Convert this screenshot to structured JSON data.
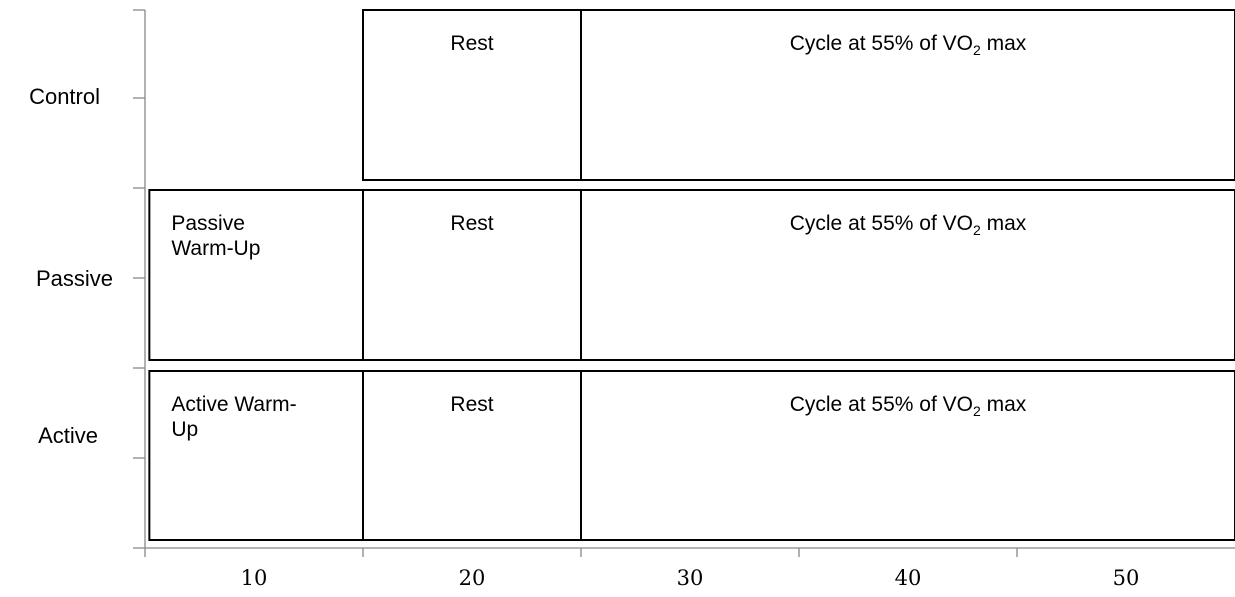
{
  "chart_data": {
    "type": "bar",
    "orientation": "horizontal",
    "stacked": true,
    "title": "",
    "xlabel": "",
    "ylabel": "",
    "xlim": [
      5,
      55
    ],
    "x_ticks": [
      10,
      20,
      30,
      40,
      50
    ],
    "categories": [
      "Control",
      "Passive",
      "Active"
    ],
    "grid": false,
    "legend": "none",
    "bars": [
      {
        "category": "Control",
        "segments": [
          {
            "label": "Rest",
            "start": 15,
            "end": 25
          },
          {
            "label": "Cycle at 55% of VO",
            "subscript": "2",
            "label_suffix": " max",
            "start": 25,
            "end": 55
          }
        ]
      },
      {
        "category": "Passive",
        "segments": [
          {
            "label": "Passive Warm-Up",
            "lines": [
              "Passive",
              "Warm-Up"
            ],
            "start": 5.2,
            "end": 15
          },
          {
            "label": "Rest",
            "start": 15,
            "end": 25
          },
          {
            "label": "Cycle at 55% of VO",
            "subscript": "2",
            "label_suffix": " max",
            "start": 25,
            "end": 55
          }
        ]
      },
      {
        "category": "Active",
        "segments": [
          {
            "label": "Active Warm-Up",
            "lines": [
              "Active Warm-",
              "Up"
            ],
            "start": 5.2,
            "end": 15
          },
          {
            "label": "Rest",
            "start": 15,
            "end": 25
          },
          {
            "label": "Cycle at 55% of VO",
            "subscript": "2",
            "label_suffix": " max",
            "start": 25,
            "end": 55
          }
        ]
      }
    ],
    "colors": {
      "fill": "#ffffff",
      "stroke": "#000000",
      "axis": "#888888"
    }
  }
}
